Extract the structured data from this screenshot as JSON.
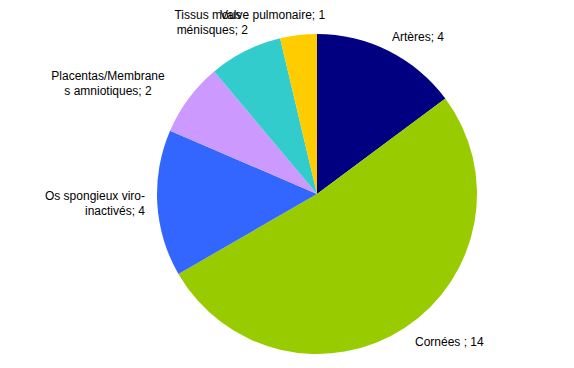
{
  "chart_data": {
    "type": "pie",
    "categories": [
      "Artères",
      "Cornées",
      "Os spongieux viro-inactivés",
      "Placentas/Membranes amniotiques",
      "Tissus mous : ménisques",
      "Valve pulmonaire"
    ],
    "values": [
      4,
      14,
      4,
      2,
      2,
      1
    ],
    "value_labels": [
      "; 4",
      " ; 14",
      "; 4",
      "; 2",
      "; 2",
      "; 1"
    ],
    "colors": [
      "#000080",
      "#99cc00",
      "#3366ff",
      "#cc99ff",
      "#33cccc",
      "#ffcc00"
    ],
    "data_labels": true
  }
}
